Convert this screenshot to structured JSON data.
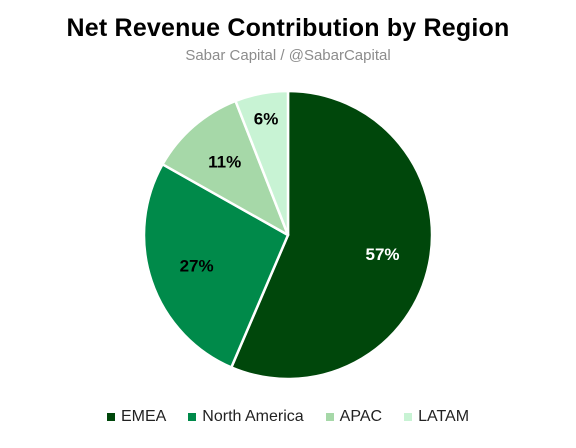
{
  "chart_data": {
    "type": "pie",
    "title": "Net Revenue Contribution by Region",
    "subtitle": "Sabar Capital / @SabarCapital",
    "slices": [
      {
        "label": "EMEA",
        "value": 57,
        "display": "57%",
        "color": "#00470b",
        "label_color": "#ffffff"
      },
      {
        "label": "North America",
        "value": 27,
        "display": "27%",
        "color": "#008a4a",
        "label_color": "#000000"
      },
      {
        "label": "APAC",
        "value": 11,
        "display": "11%",
        "color": "#a6d8a8",
        "label_color": "#000000"
      },
      {
        "label": "LATAM",
        "value": 6,
        "display": "6%",
        "color": "#c8f3d4",
        "label_color": "#000000"
      }
    ],
    "legend_position": "bottom",
    "start_angle": "12 o'clock",
    "direction": "clockwise"
  }
}
